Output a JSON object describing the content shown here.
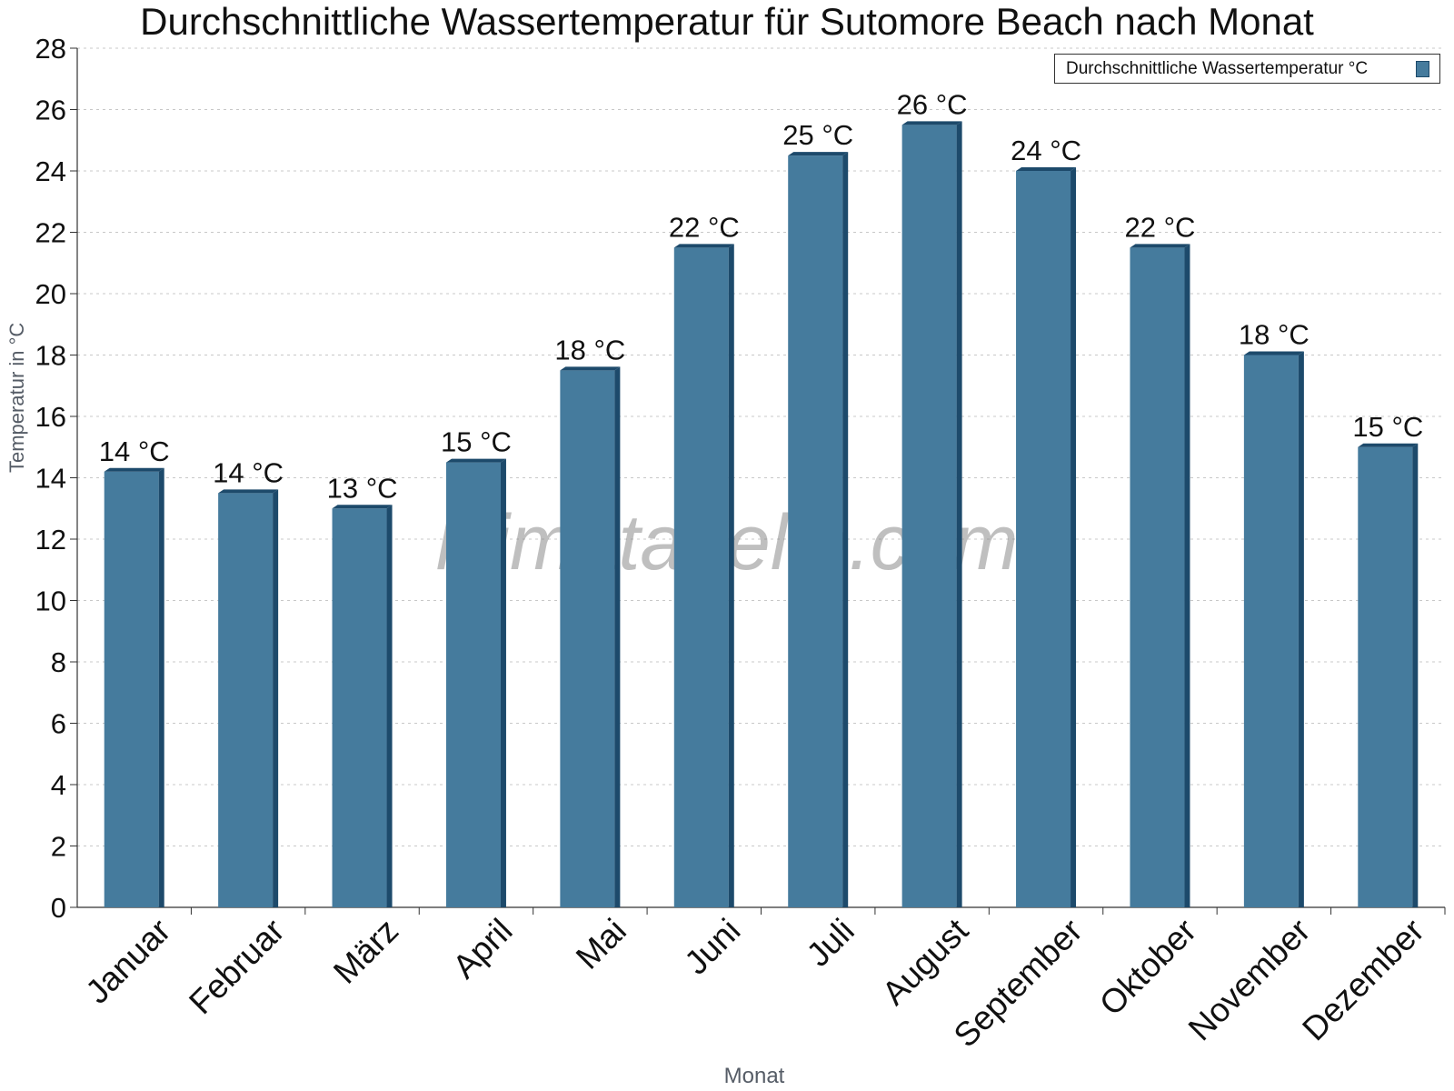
{
  "chart_data": {
    "type": "bar",
    "title": "Durchschnittliche Wassertemperatur für Sutomore Beach nach Monat",
    "xlabel": "Monat",
    "ylabel": "Temperatur in °C",
    "categories": [
      "Januar",
      "Februar",
      "März",
      "April",
      "Mai",
      "Juni",
      "Juli",
      "August",
      "September",
      "Oktober",
      "November",
      "Dezember"
    ],
    "series": [
      {
        "name": "Durchschnittliche Wassertemperatur °C",
        "values": [
          14.2,
          13.5,
          13.0,
          14.5,
          17.5,
          21.5,
          24.5,
          25.5,
          24.0,
          21.5,
          18.0,
          15.0
        ],
        "data_labels": [
          "14 °C",
          "14 °C",
          "13 °C",
          "15 °C",
          "18 °C",
          "22 °C",
          "25 °C",
          "26 °C",
          "24 °C",
          "22 °C",
          "18 °C",
          "15 °C"
        ]
      }
    ],
    "ylim": [
      0,
      28
    ],
    "yticks": [
      "0",
      "2",
      "4",
      "6",
      "8",
      "10",
      "12",
      "14",
      "16",
      "18",
      "20",
      "22",
      "24",
      "26",
      "28"
    ],
    "grid": true,
    "legend_position": "top-right",
    "colors": {
      "bar": "#457b9d",
      "bar_edge": "#1d4a6b"
    },
    "watermark": "klimatabelle.com"
  }
}
